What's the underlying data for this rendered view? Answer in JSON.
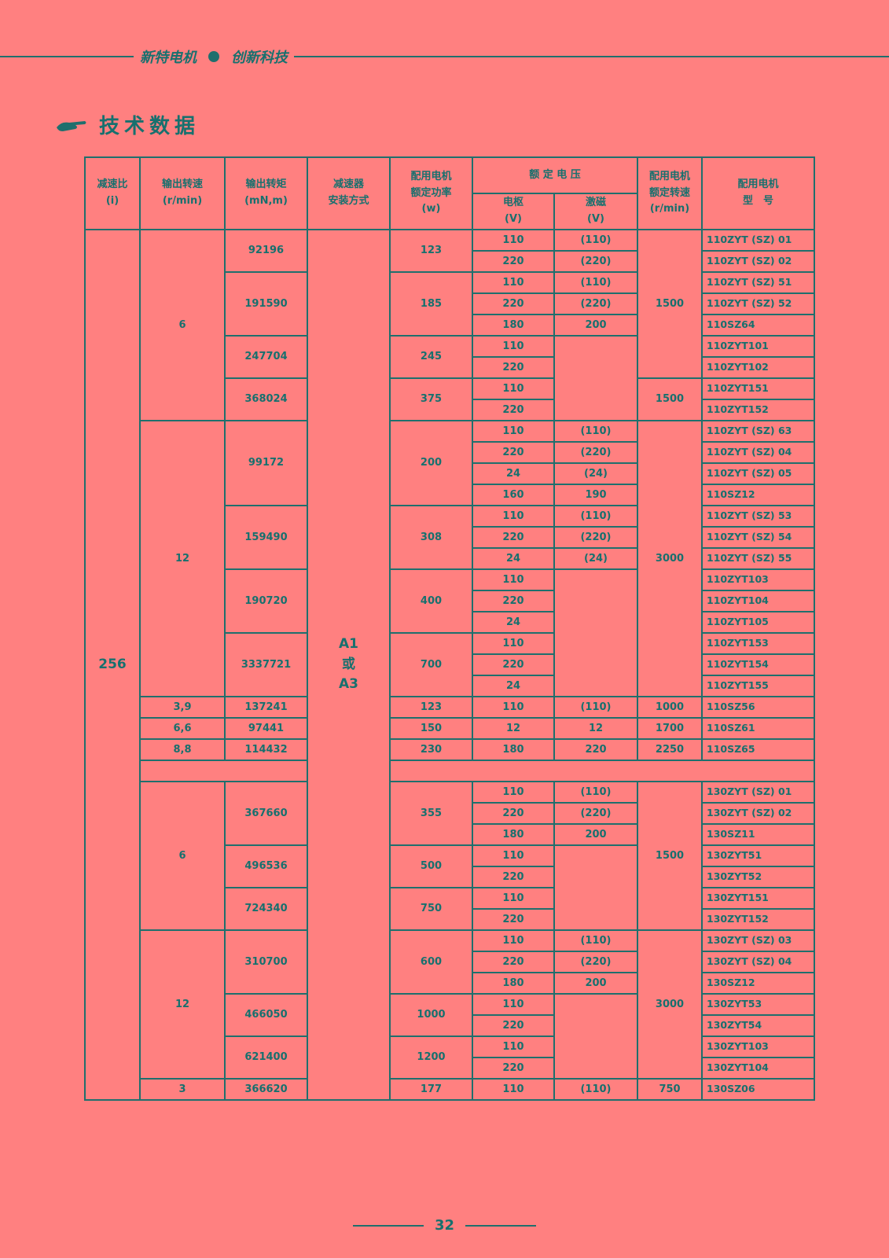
{
  "header": {
    "slogan_left": "新特电机",
    "slogan_right": "创新科技"
  },
  "section_title": "技术数据",
  "table": {
    "header": [
      [
        {
          "text": "减速比\n(i)",
          "rowspan": 2
        },
        {
          "text": "输出转速\n(r/min)",
          "rowspan": 2
        },
        {
          "text": "输出转矩\n(mN,m)",
          "rowspan": 2
        },
        {
          "text": "减速器\n安装方式",
          "rowspan": 2
        },
        {
          "text": "配用电机\n额定功率\n(w)",
          "rowspan": 2
        },
        {
          "text": "额 定 电 压",
          "colspan": 2
        },
        {
          "text": "配用电机\n额定转速\n(r/min)",
          "rowspan": 2
        },
        {
          "text": "配用电机\n型　号",
          "rowspan": 2
        }
      ],
      [
        "电枢\n(V)",
        "激磁\n(V)"
      ]
    ],
    "body": [
      [
        {
          "text": "256",
          "rowspan": 41
        },
        {
          "text": "6",
          "rowspan": 9
        },
        {
          "text": "92196",
          "rowspan": 2
        },
        {
          "text": "A1\n或\nA3",
          "rowspan": 41
        },
        {
          "text": "123",
          "rowspan": 2
        },
        "110",
        "(110)",
        {
          "text": "1500",
          "rowspan": 7
        },
        "110ZYT (SZ) 01"
      ],
      [
        "220",
        "(220)",
        "110ZYT (SZ) 02"
      ],
      [
        {
          "text": "191590",
          "rowspan": 3
        },
        {
          "text": "185",
          "rowspan": 3
        },
        "110",
        "(110)",
        "110ZYT (SZ) 51"
      ],
      [
        "220",
        "(220)",
        "110ZYT (SZ) 52"
      ],
      [
        "180",
        "200",
        "110SZ64"
      ],
      [
        {
          "text": "247704",
          "rowspan": 2
        },
        {
          "text": "245",
          "rowspan": 2
        },
        "110",
        {
          "rowspan": 4
        },
        "110ZYT101"
      ],
      [
        "220",
        "110ZYT102"
      ],
      [
        {
          "text": "368024",
          "rowspan": 2
        },
        {
          "text": "375",
          "rowspan": 2
        },
        "110",
        {
          "text": "1500",
          "rowspan": 2
        },
        "110ZYT151"
      ],
      [
        "220",
        "110ZYT152"
      ],
      [
        {
          "text": "12",
          "rowspan": 13
        },
        {
          "text": "99172",
          "rowspan": 4
        },
        {
          "text": "200",
          "rowspan": 4
        },
        "110",
        "(110)",
        {
          "text": "3000",
          "rowspan": 13
        },
        "110ZYT (SZ) 63"
      ],
      [
        "220",
        "(220)",
        "110ZYT (SZ) 04"
      ],
      [
        "24",
        "(24)",
        "110ZYT (SZ) 05"
      ],
      [
        "160",
        "190",
        "110SZ12"
      ],
      [
        {
          "text": "159490",
          "rowspan": 3
        },
        {
          "text": "308",
          "rowspan": 3
        },
        "110",
        "(110)",
        "110ZYT (SZ) 53"
      ],
      [
        "220",
        "(220)",
        "110ZYT (SZ) 54"
      ],
      [
        "24",
        "(24)",
        "110ZYT (SZ) 55"
      ],
      [
        {
          "text": "190720",
          "rowspan": 3
        },
        {
          "text": "400",
          "rowspan": 3
        },
        "110",
        {
          "rowspan": 6
        },
        "110ZYT103"
      ],
      [
        "220",
        "110ZYT104"
      ],
      [
        "24",
        "110ZYT105"
      ],
      [
        {
          "text": "3337721",
          "rowspan": 3
        },
        {
          "text": "700",
          "rowspan": 3
        },
        "110",
        "110ZYT153"
      ],
      [
        "220",
        "110ZYT154"
      ],
      [
        "24",
        "110ZYT155"
      ],
      [
        "3,9",
        "137241",
        "123",
        "110",
        "(110)",
        "1000",
        "110SZ56"
      ],
      [
        "6,6",
        "97441",
        "150",
        "12",
        "12",
        "1700",
        "110SZ61"
      ],
      [
        "8,8",
        "114432",
        "230",
        "180",
        "220",
        "2250",
        "110SZ65"
      ],
      [
        {
          "colspan": 2
        },
        {
          "colspan": 5
        }
      ],
      [
        {
          "text": "6",
          "rowspan": 7
        },
        {
          "text": "367660",
          "rowspan": 3
        },
        {
          "text": "355",
          "rowspan": 3
        },
        "110",
        "(110)",
        {
          "text": "1500",
          "rowspan": 7
        },
        "130ZYT (SZ) 01"
      ],
      [
        "220",
        "(220)",
        "130ZYT (SZ) 02"
      ],
      [
        "180",
        "200",
        "130SZ11"
      ],
      [
        {
          "text": "496536",
          "rowspan": 2
        },
        {
          "text": "500",
          "rowspan": 2
        },
        "110",
        {
          "rowspan": 4
        },
        "130ZYT51"
      ],
      [
        "220",
        "130ZYT52"
      ],
      [
        {
          "text": "724340",
          "rowspan": 2
        },
        {
          "text": "750",
          "rowspan": 2
        },
        "110",
        "130ZYT151"
      ],
      [
        "220",
        "130ZYT152"
      ],
      [
        {
          "text": "12",
          "rowspan": 7
        },
        {
          "text": "310700",
          "rowspan": 3
        },
        {
          "text": "600",
          "rowspan": 3
        },
        "110",
        "(110)",
        {
          "text": "3000",
          "rowspan": 7
        },
        "130ZYT (SZ) 03"
      ],
      [
        "220",
        "(220)",
        "130ZYT (SZ) 04"
      ],
      [
        "180",
        "200",
        "130SZ12"
      ],
      [
        {
          "text": "466050",
          "rowspan": 2
        },
        {
          "text": "1000",
          "rowspan": 2
        },
        "110",
        {
          "rowspan": 4
        },
        "130ZYT53"
      ],
      [
        "220",
        "130ZYT54"
      ],
      [
        {
          "text": "621400",
          "rowspan": 2
        },
        {
          "text": "1200",
          "rowspan": 2
        },
        "110",
        "130ZYT103"
      ],
      [
        "220",
        "130ZYT104"
      ],
      [
        "3",
        "366620",
        "177",
        "110",
        "(110)",
        "750",
        "130SZ06"
      ]
    ]
  },
  "page_number": "32"
}
